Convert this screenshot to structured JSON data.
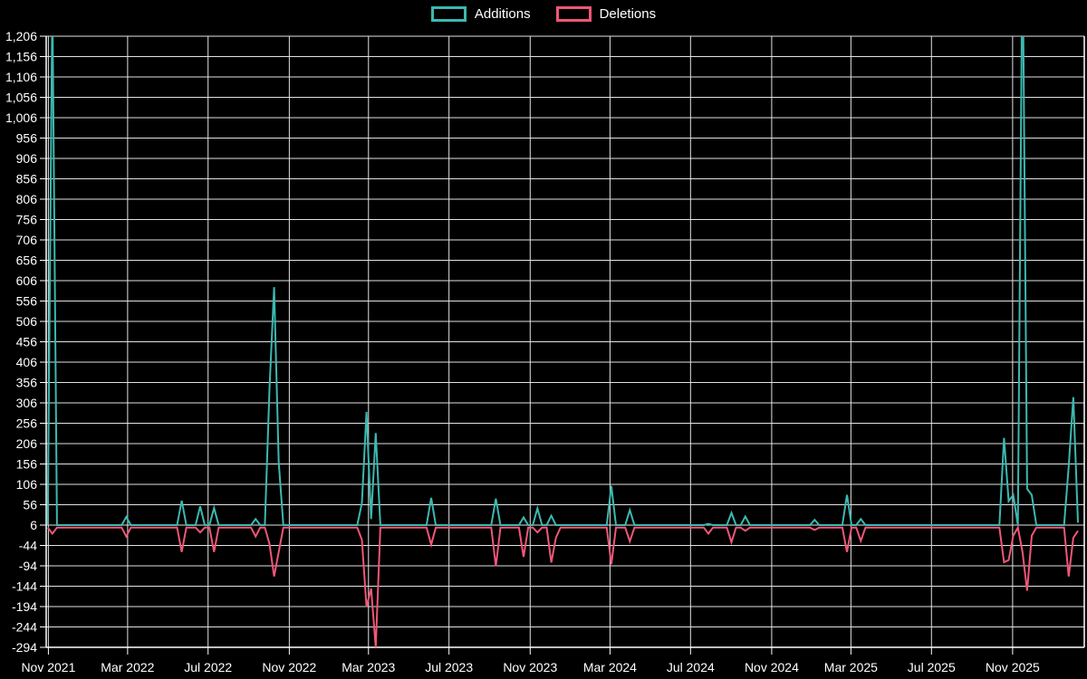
{
  "page": {
    "background": "#000000",
    "text_color": "#ffffff"
  },
  "chart_data": {
    "type": "line",
    "title": "",
    "xlabel": "",
    "ylabel": "",
    "legend_position": "top-center",
    "grid": true,
    "grid_color": "#e2e2e2",
    "axis_color": "#ffffff",
    "series": [
      {
        "name": "Additions",
        "color": "#3cb8b0",
        "baseline": 6
      },
      {
        "name": "Deletions",
        "color": "#f05777",
        "baseline": 0
      }
    ],
    "y_axis": {
      "max": 1206,
      "min": -294,
      "step": 50,
      "labels": [
        "1,206",
        "1,156",
        "1,106",
        "1,056",
        "1,006",
        "956",
        "906",
        "856",
        "806",
        "756",
        "706",
        "656",
        "606",
        "556",
        "506",
        "456",
        "406",
        "356",
        "306",
        "256",
        "206",
        "156",
        "106",
        "56",
        "6",
        "-44",
        "-94",
        "-144",
        "-194",
        "-244",
        "-294"
      ]
    },
    "x_axis": {
      "ticks": [
        {
          "label": "Nov 2021",
          "week": 0.14
        },
        {
          "label": "Mar 2022",
          "week": 17.29
        },
        {
          "label": "Jul 2022",
          "week": 34.71
        },
        {
          "label": "Nov 2022",
          "week": 52.29
        },
        {
          "label": "Mar 2023",
          "week": 69.43
        },
        {
          "label": "Jul 2023",
          "week": 86.86
        },
        {
          "label": "Nov 2023",
          "week": 104.43
        },
        {
          "label": "Mar 2024",
          "week": 121.71
        },
        {
          "label": "Jul 2024",
          "week": 139.14
        },
        {
          "label": "Nov 2024",
          "week": 156.71
        },
        {
          "label": "Mar 2025",
          "week": 173.86
        },
        {
          "label": "Jul 2025",
          "week": 191.29
        },
        {
          "label": "Nov 2025",
          "week": 208.86
        }
      ]
    },
    "weeks_total": 224,
    "week0_date": "2021-10-31",
    "clip_note": "values above 1206 are drawn clipped at the plot top",
    "spikes": [
      {
        "week": 1,
        "date": "2021-11-07",
        "additions": 1300,
        "deletions": -15
      },
      {
        "week": 17,
        "date": "2022-02-27",
        "additions": 26,
        "deletions": -22
      },
      {
        "week": 29,
        "date": "2022-05-22",
        "additions": 66,
        "deletions": -60
      },
      {
        "week": 33,
        "date": "2022-06-19",
        "additions": 52,
        "deletions": -12
      },
      {
        "week": 36,
        "date": "2022-07-10",
        "additions": 48,
        "deletions": -60
      },
      {
        "week": 45,
        "date": "2022-09-11",
        "additions": 21,
        "deletions": -22
      },
      {
        "week": 48,
        "date": "2022-10-02",
        "additions": 340,
        "deletions": -40
      },
      {
        "week": 49,
        "date": "2022-10-09",
        "additions": 590,
        "deletions": -120
      },
      {
        "week": 50,
        "date": "2022-10-16",
        "additions": 160,
        "deletions": -60
      },
      {
        "week": 68,
        "date": "2023-02-19",
        "additions": 60,
        "deletions": -30
      },
      {
        "week": 69,
        "date": "2023-02-26",
        "additions": 284,
        "deletions": -194
      },
      {
        "week": 70,
        "date": "2023-03-05",
        "additions": 21,
        "deletions": -150
      },
      {
        "week": 71,
        "date": "2023-03-12",
        "additions": 232,
        "deletions": -294
      },
      {
        "week": 83,
        "date": "2023-06-04",
        "additions": 73,
        "deletions": -42
      },
      {
        "week": 97,
        "date": "2023-09-10",
        "additions": 71,
        "deletions": -95
      },
      {
        "week": 103,
        "date": "2023-10-22",
        "additions": 25,
        "deletions": -72
      },
      {
        "week": 106,
        "date": "2023-11-12",
        "additions": 47,
        "deletions": -12
      },
      {
        "week": 109,
        "date": "2023-12-03",
        "additions": 29,
        "deletions": -86
      },
      {
        "week": 110,
        "date": "2023-12-10",
        "additions": 6,
        "deletions": -25
      },
      {
        "week": 122,
        "date": "2024-03-03",
        "additions": 102,
        "deletions": -90
      },
      {
        "week": 126,
        "date": "2024-03-31",
        "additions": 43,
        "deletions": -34
      },
      {
        "week": 143,
        "date": "2024-07-28",
        "additions": 9,
        "deletions": -15
      },
      {
        "week": 148,
        "date": "2024-09-01",
        "additions": 36,
        "deletions": -36
      },
      {
        "week": 151,
        "date": "2024-09-22",
        "additions": 27,
        "deletions": -8
      },
      {
        "week": 166,
        "date": "2025-01-05",
        "additions": 19,
        "deletions": -6
      },
      {
        "week": 173,
        "date": "2025-02-23",
        "additions": 80,
        "deletions": -60
      },
      {
        "week": 176,
        "date": "2025-03-16",
        "additions": 21,
        "deletions": -33
      },
      {
        "week": 207,
        "date": "2025-10-19",
        "additions": 220,
        "deletions": -85
      },
      {
        "week": 208,
        "date": "2025-10-26",
        "additions": 65,
        "deletions": -80
      },
      {
        "week": 209,
        "date": "2025-11-02",
        "additions": 80,
        "deletions": -20
      },
      {
        "week": 211,
        "date": "2025-11-16",
        "additions": 1450,
        "deletions": -60
      },
      {
        "week": 212,
        "date": "2025-11-23",
        "additions": 95,
        "deletions": -155
      },
      {
        "week": 213,
        "date": "2025-11-30",
        "additions": 80,
        "deletions": -20
      },
      {
        "week": 221,
        "date": "2026-01-25",
        "additions": 150,
        "deletions": -120
      },
      {
        "week": 222,
        "date": "2026-02-01",
        "additions": 320,
        "deletions": -25
      },
      {
        "week": 223,
        "date": "2026-02-08",
        "additions": 12,
        "deletions": -8
      }
    ]
  }
}
